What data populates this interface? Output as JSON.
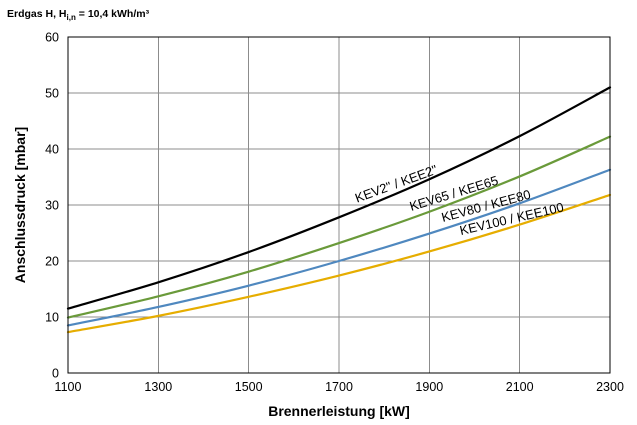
{
  "header": {
    "prefix": "Erdgas H, H",
    "subscript": "i,n",
    "suffix": " = 10,4 kWh/m³"
  },
  "chart_data": {
    "type": "line",
    "title": "",
    "xlabel": "Brennerleistung [kW]",
    "ylabel": "Anschlussdruck [mbar]",
    "xlim": [
      1100,
      2300
    ],
    "ylim": [
      0,
      60
    ],
    "xticks": [
      1100,
      1300,
      1500,
      1700,
      1900,
      2100,
      2300
    ],
    "yticks": [
      0,
      10,
      20,
      30,
      40,
      50,
      60
    ],
    "grid": true,
    "legend": "none",
    "series": [
      {
        "name": "KEV2\" / KEE2\"",
        "color": "#000000",
        "x": [
          1100,
          1300,
          1500,
          1700,
          1900,
          2100,
          2300
        ],
        "y": [
          11.5,
          16.2,
          21.6,
          27.8,
          34.6,
          42.3,
          51.0
        ]
      },
      {
        "name": "KEV65 / KEE65",
        "color": "#6a9a3a",
        "x": [
          1100,
          1300,
          1500,
          1700,
          1900,
          2100,
          2300
        ],
        "y": [
          9.9,
          13.7,
          18.1,
          23.2,
          28.8,
          35.1,
          42.2
        ]
      },
      {
        "name": "KEV80 / KEE80",
        "color": "#4f88bf",
        "x": [
          1100,
          1300,
          1500,
          1700,
          1900,
          2100,
          2300
        ],
        "y": [
          8.5,
          11.8,
          15.6,
          20.0,
          24.9,
          30.3,
          36.3
        ]
      },
      {
        "name": "KEV100 / KEE100",
        "color": "#e6ad00",
        "x": [
          1100,
          1300,
          1500,
          1700,
          1900,
          2100,
          2300
        ],
        "y": [
          7.3,
          10.2,
          13.6,
          17.4,
          21.7,
          26.5,
          31.8
        ]
      }
    ]
  }
}
